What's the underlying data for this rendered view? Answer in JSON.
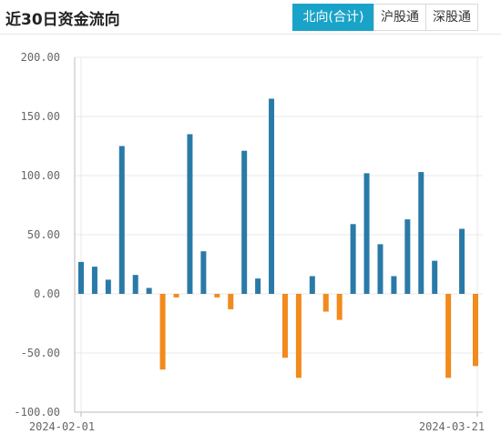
{
  "header": {
    "title": "近30日资金流向",
    "tabs": [
      {
        "label": "北向(合计)",
        "active": true
      },
      {
        "label": "沪股通",
        "active": false
      },
      {
        "label": "深股通",
        "active": false
      }
    ]
  },
  "colors": {
    "positive": "#2a7aa8",
    "negative": "#f28a1c",
    "accent": "#1aa3c8"
  },
  "chart_data": {
    "type": "bar",
    "title": "近30日资金流向",
    "ylim": [
      -100,
      200
    ],
    "yticks": [
      200,
      150,
      100,
      50,
      0,
      -50,
      -100
    ],
    "ytick_labels": [
      "200.00",
      "150.00",
      "100.00",
      "50.00",
      "0.00",
      "-50.00",
      "-100.00"
    ],
    "x_start_label": "2024-02-01",
    "x_end_label": "2024-03-21",
    "grid": true,
    "values": [
      27,
      23,
      12,
      125,
      16,
      5,
      -64,
      -3,
      135,
      36,
      -3,
      -13,
      121,
      13,
      165,
      -54,
      -71,
      15,
      -15,
      -22,
      59,
      102,
      42,
      15,
      63,
      103,
      28,
      -71,
      55,
      -61
    ]
  }
}
